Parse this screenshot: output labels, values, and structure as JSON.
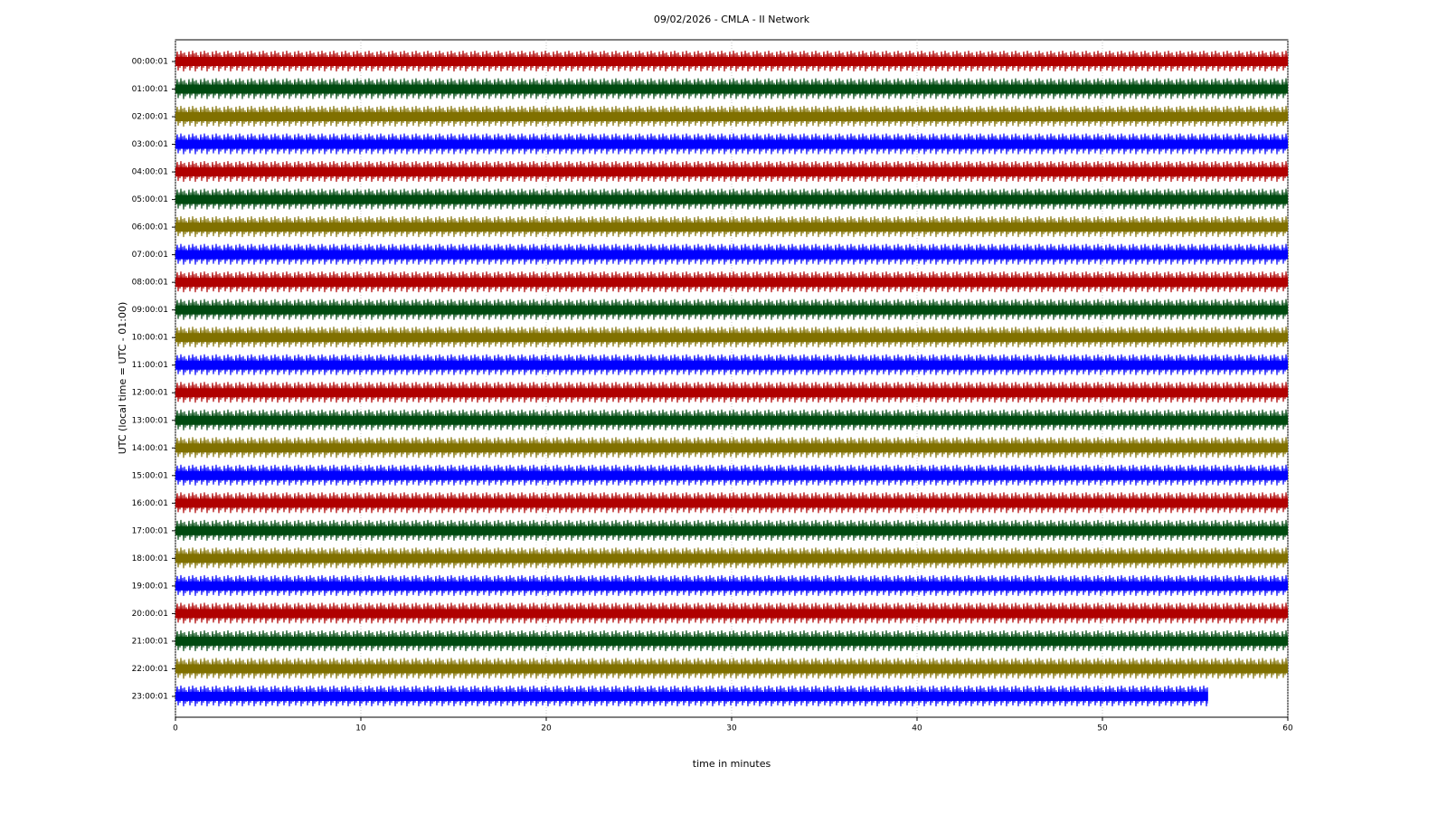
{
  "chart_data": {
    "type": "helicorder",
    "title": "09/02/2026 - CMLA - II Network",
    "xlabel": "time in minutes",
    "ylabel": "UTC (local time = UTC - 01:00)",
    "xlim": [
      0,
      60
    ],
    "xticks": [
      0,
      10,
      20,
      30,
      40,
      50,
      60
    ],
    "grid": true,
    "colors": [
      "#b00000",
      "#004a10",
      "#807000",
      "#0000ff"
    ],
    "categories": [
      "00:00:01",
      "01:00:01",
      "02:00:01",
      "03:00:01",
      "04:00:01",
      "05:00:01",
      "06:00:01",
      "07:00:01",
      "08:00:01",
      "09:00:01",
      "10:00:01",
      "11:00:01",
      "12:00:01",
      "13:00:01",
      "14:00:01",
      "15:00:01",
      "16:00:01",
      "17:00:01",
      "18:00:01",
      "19:00:01",
      "20:00:01",
      "21:00:01",
      "22:00:01",
      "23:00:01"
    ],
    "values": [
      60,
      60,
      60,
      60,
      60,
      60,
      60,
      60,
      60,
      60,
      60,
      60,
      60,
      60,
      60,
      60,
      60,
      60,
      60,
      60,
      60,
      60,
      60,
      55.7
    ]
  }
}
